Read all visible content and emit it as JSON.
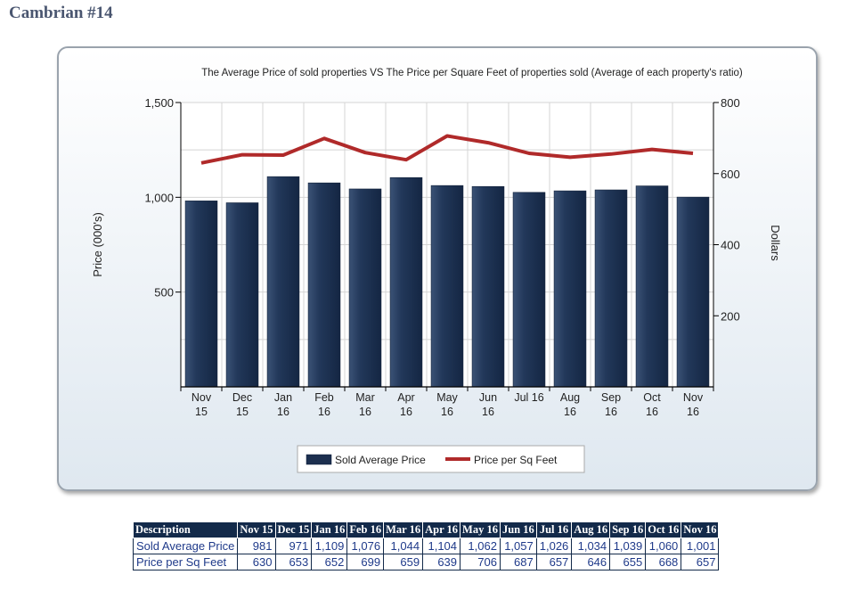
{
  "page_title": "Cambrian #14",
  "chart_data": {
    "type": "bar",
    "title": "The Average Price of sold properties VS The Price per Square Feet of properties sold (Average of each property's ratio)",
    "ylabel": "Price (000's)",
    "y2label": "Dollars",
    "ylim": [
      0,
      1500
    ],
    "y2lim": [
      0,
      800
    ],
    "yticks": [
      "500",
      "1,000",
      "1,500"
    ],
    "y2ticks": [
      "200",
      "400",
      "600",
      "800"
    ],
    "categories": [
      [
        "Nov",
        "15"
      ],
      [
        "Dec",
        "15"
      ],
      [
        "Jan",
        "16"
      ],
      [
        "Feb",
        "16"
      ],
      [
        "Mar",
        "16"
      ],
      [
        "Apr",
        "16"
      ],
      [
        "May",
        "16"
      ],
      [
        "Jun",
        "16"
      ],
      [
        "Jul 16",
        ""
      ],
      [
        "Aug",
        "16"
      ],
      [
        "Sep",
        "16"
      ],
      [
        "Oct",
        "16"
      ],
      [
        "Nov",
        "16"
      ]
    ],
    "series": [
      {
        "name": "Sold Average Price",
        "type": "bar",
        "axis": "left",
        "color": "#1c2f4f",
        "values": [
          981,
          971,
          1109,
          1076,
          1044,
          1104,
          1062,
          1057,
          1026,
          1034,
          1039,
          1060,
          1001
        ]
      },
      {
        "name": "Price per Sq Feet",
        "type": "line",
        "axis": "right",
        "color": "#b02a2a",
        "values": [
          630,
          653,
          652,
          699,
          659,
          639,
          706,
          687,
          657,
          646,
          655,
          668,
          657
        ]
      }
    ],
    "grid": true,
    "legend": "bottom"
  },
  "table": {
    "headers": [
      "Description",
      "Nov 15",
      "Dec 15",
      "Jan 16",
      "Feb 16",
      "Mar 16",
      "Apr 16",
      "May 16",
      "Jun 16",
      "Jul 16",
      "Aug 16",
      "Sep 16",
      "Oct 16",
      "Nov 16"
    ],
    "rows": [
      [
        "Sold Average Price",
        "981",
        "971",
        "1,109",
        "1,076",
        "1,044",
        "1,104",
        "1,062",
        "1,057",
        "1,026",
        "1,034",
        "1,039",
        "1,060",
        "1,001"
      ],
      [
        "Price per Sq Feet",
        "630",
        "653",
        "652",
        "699",
        "659",
        "639",
        "706",
        "687",
        "657",
        "646",
        "655",
        "668",
        "657"
      ]
    ]
  }
}
